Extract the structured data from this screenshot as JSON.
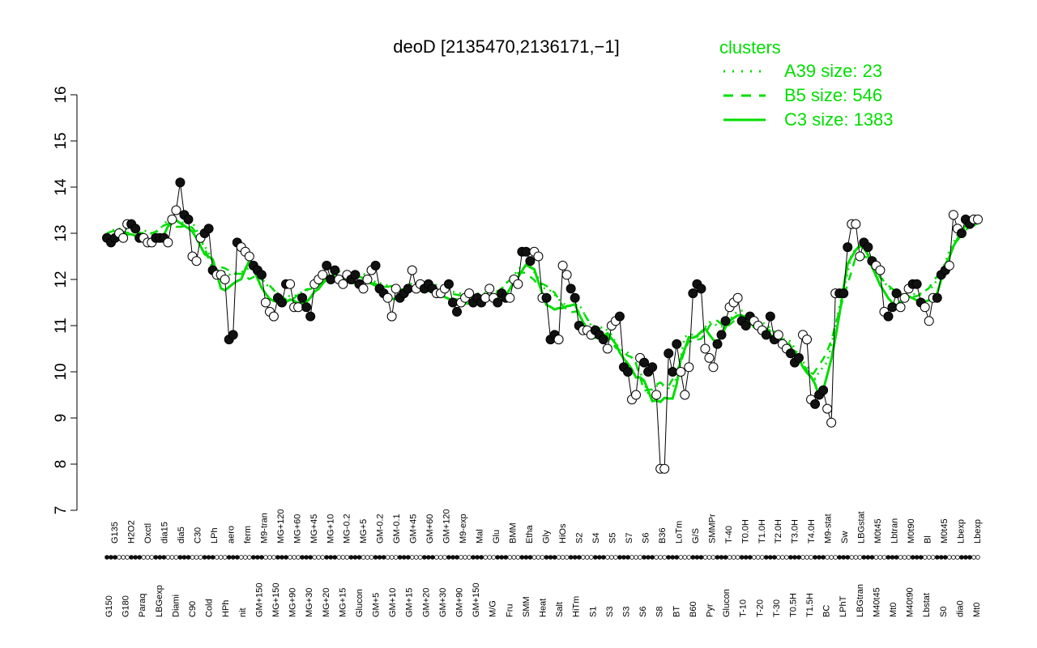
{
  "chart_data": {
    "type": "line",
    "title": "deoD [2135470,2136171,−1]",
    "ylim": [
      7,
      16
    ],
    "yticks": [
      7,
      8,
      9,
      10,
      11,
      12,
      13,
      14,
      15,
      16
    ],
    "grid": false,
    "legend": {
      "title": "clusters",
      "placement": "top-right",
      "entries": [
        {
          "label": "A39 size: 23",
          "style": "dotted"
        },
        {
          "label": "B5 size: 546",
          "style": "dashed"
        },
        {
          "label": "C3 size: 1383",
          "style": "solid"
        }
      ]
    },
    "colors": {
      "points_dark": "#111111",
      "points_light": "#ffffff",
      "line": "#000000",
      "cluster": "#00dd00"
    },
    "x_labels_top": [
      "G135",
      "H2O2",
      "Oxctl",
      "dia15",
      "dia5",
      "C30",
      "LPh",
      "aero",
      "ferm",
      "M9-tran",
      "MG+120",
      "MG+60",
      "MG+45",
      "MG+10",
      "MG-0.2",
      "MG+5",
      "GM-0.2",
      "GM-0.1",
      "GM+45",
      "GM+60",
      "GM+120",
      "M9-exp",
      "Mal",
      "Glu",
      "BMM",
      "Etha",
      "Gly",
      "HiOs",
      "S2",
      "S4",
      "S5",
      "S7",
      "S6",
      "B36",
      "LoTm",
      "G/S",
      "SMMPr",
      "T-40",
      "T0.0H",
      "T1.0H",
      "T2.0H",
      "T3.0H",
      "T4.0H",
      "M9-stat",
      "Sw",
      "LBGstat",
      "M0t45",
      "Lbtran",
      "M0t90",
      "Bl",
      "M0t45",
      "Lbexp",
      "Lbexp"
    ],
    "x_labels_bottom": [
      "G150",
      "G180",
      "Paraq",
      "LBGexp",
      "Diami",
      "C90",
      "Cold",
      "HPh",
      "nit",
      "GM+150",
      "MG+150",
      "MG+90",
      "MG+30",
      "MG+20",
      "MG+15",
      "Glucon",
      "GM+5",
      "GM+10",
      "GM+15",
      "GM+20",
      "GM+30",
      "GM+90",
      "GM+150",
      "M/G",
      "Fru",
      "SMM",
      "Heat",
      "Salt",
      "HiTm",
      "S1",
      "S3",
      "S3",
      "S6",
      "S8",
      "BT",
      "B60",
      "Pyr",
      "Glucon",
      "T-10",
      "T-20",
      "T-30",
      "T0.5H",
      "T1.5H",
      "BC",
      "LPhT",
      "LBGtran",
      "M40t45",
      "Mt0",
      "M40t90",
      "Lbstat",
      "S0",
      "dia0",
      "Mt0"
    ],
    "series": [
      {
        "values": [
          12.9,
          12.8,
          12.9,
          13.0,
          12.9,
          13.2,
          13.2,
          13.1,
          12.9,
          12.9,
          12.8,
          12.8,
          12.9,
          12.9,
          12.9,
          12.8,
          13.3,
          13.5,
          14.1,
          13.4,
          13.3,
          12.5,
          12.4,
          12.9,
          13.0,
          13.1,
          12.2,
          12.1,
          12.1,
          12.0,
          10.7,
          10.8,
          12.8,
          12.7,
          12.6,
          12.5,
          12.3,
          12.2,
          12.1,
          11.5,
          11.3,
          11.2,
          11.6,
          11.5,
          11.9,
          11.9,
          11.4,
          11.4,
          11.6,
          11.4,
          11.2,
          11.9,
          12.0,
          12.1,
          12.3,
          12.0,
          12.2,
          12.0,
          11.9,
          12.1,
          12.0,
          12.1,
          11.9,
          11.8,
          12.0,
          12.2,
          12.3,
          11.8,
          11.7,
          11.6,
          11.2,
          11.8,
          11.6,
          11.7,
          11.8,
          12.2,
          11.8,
          11.9,
          11.8,
          11.9,
          11.8,
          11.7,
          11.7,
          11.8,
          11.9,
          11.5,
          11.3,
          11.5,
          11.6,
          11.7,
          11.5,
          11.6,
          11.5,
          11.6,
          11.8,
          11.6,
          11.5,
          11.7,
          11.6,
          11.6,
          12.0,
          11.9,
          12.6,
          12.6,
          12.4,
          12.6,
          12.5,
          11.6,
          11.6,
          10.7,
          10.8,
          10.7,
          12.3,
          12.1,
          11.8,
          11.6,
          11.0,
          10.9,
          10.9,
          10.8,
          10.9,
          10.8,
          10.7,
          10.5,
          11.0,
          11.1,
          11.2,
          10.1,
          10.0,
          9.4,
          9.5,
          10.3,
          10.2,
          10.0,
          10.1,
          9.5,
          7.9,
          7.9,
          10.4,
          10.0,
          10.6,
          10.0,
          9.5,
          10.1,
          11.7,
          11.9,
          11.8,
          10.5,
          10.3,
          10.1,
          10.6,
          10.8,
          11.1,
          11.4,
          11.5,
          11.6,
          11.1,
          11.0,
          11.2,
          11.1,
          11.0,
          10.9,
          10.8,
          11.2,
          10.7,
          10.8,
          10.6,
          10.5,
          10.4,
          10.2,
          10.3,
          10.8,
          10.7,
          9.4,
          9.3,
          9.5,
          9.6,
          9.2,
          8.9,
          11.7,
          11.7,
          11.7,
          12.7,
          13.2,
          13.2,
          12.5,
          12.8,
          12.7,
          12.4,
          12.3,
          12.2,
          11.3,
          11.2,
          11.4,
          11.7,
          11.4,
          11.6,
          11.8,
          11.9,
          11.9,
          11.5,
          11.4,
          11.1,
          11.6,
          11.6,
          12.1,
          12.2,
          12.3,
          13.4,
          13.1,
          13.0,
          13.3,
          13.2,
          13.3,
          13.3
        ]
      }
    ]
  }
}
